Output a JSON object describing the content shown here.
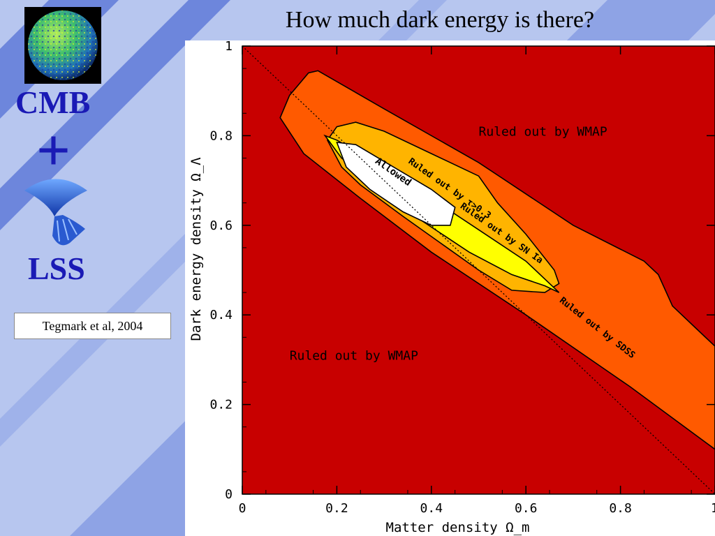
{
  "slide": {
    "title": "How much dark energy is there?",
    "cmb_label": "CMB",
    "plus_label": "+",
    "lss_label": "LSS",
    "citation": "Tegmark et al, 2004"
  },
  "colors": {
    "slide_background": "#b7c6ef",
    "slide_stripes": "#6d86dc",
    "side_text": "#1a1ab5",
    "ruled_out_wmap": "#c80000",
    "ruled_out_sdss": "#ff5a00",
    "ruled_out_tau": "#ffb400",
    "ruled_out_sn": "#ffff00",
    "allowed": "#ffffff"
  },
  "icons": [
    "cmb-sky-globe-icon",
    "lss-cone-icon"
  ],
  "chart_data": {
    "type": "area",
    "xlabel": "Matter density Ω_m",
    "ylabel": "Dark energy density Ω_Λ",
    "xlim": [
      0,
      1
    ],
    "ylim": [
      0,
      1
    ],
    "xticks": [
      {
        "value": 0,
        "label": "0"
      },
      {
        "value": 0.2,
        "label": "0.2"
      },
      {
        "value": 0.4,
        "label": "0.4"
      },
      {
        "value": 0.6,
        "label": "0.6"
      },
      {
        "value": 0.8,
        "label": "0.8"
      },
      {
        "value": 1,
        "label": "1"
      }
    ],
    "yticks": [
      {
        "value": 0,
        "label": "0"
      },
      {
        "value": 0.2,
        "label": "0.2"
      },
      {
        "value": 0.4,
        "label": "0.4"
      },
      {
        "value": 0.6,
        "label": "0.6"
      },
      {
        "value": 0.8,
        "label": "0.8"
      },
      {
        "value": 1,
        "label": "1"
      }
    ],
    "flat_universe_line": [
      [
        0,
        1
      ],
      [
        1,
        0
      ]
    ],
    "regions": [
      {
        "key": "sdss",
        "color": "#ff5a00",
        "polygon": [
          [
            0.08,
            0.84
          ],
          [
            0.1,
            0.89
          ],
          [
            0.14,
            0.94
          ],
          [
            0.16,
            0.945
          ],
          [
            0.3,
            0.86
          ],
          [
            0.5,
            0.74
          ],
          [
            0.7,
            0.6
          ],
          [
            0.85,
            0.52
          ],
          [
            0.88,
            0.49
          ],
          [
            0.91,
            0.42
          ],
          [
            0.96,
            0.37
          ],
          [
            1,
            0.33
          ],
          [
            1,
            0.1
          ],
          [
            0.82,
            0.24
          ],
          [
            0.6,
            0.4
          ],
          [
            0.4,
            0.54
          ],
          [
            0.25,
            0.66
          ],
          [
            0.13,
            0.76
          ],
          [
            0.08,
            0.84
          ]
        ]
      },
      {
        "key": "tau",
        "color": "#ffb400",
        "polygon": [
          [
            0.18,
            0.79
          ],
          [
            0.2,
            0.82
          ],
          [
            0.24,
            0.83
          ],
          [
            0.3,
            0.81
          ],
          [
            0.4,
            0.76
          ],
          [
            0.5,
            0.71
          ],
          [
            0.54,
            0.65
          ],
          [
            0.6,
            0.58
          ],
          [
            0.66,
            0.5
          ],
          [
            0.67,
            0.47
          ],
          [
            0.64,
            0.45
          ],
          [
            0.57,
            0.455
          ],
          [
            0.5,
            0.5
          ],
          [
            0.42,
            0.56
          ],
          [
            0.34,
            0.62
          ],
          [
            0.25,
            0.69
          ],
          [
            0.21,
            0.73
          ],
          [
            0.18,
            0.79
          ]
        ]
      },
      {
        "key": "sn",
        "color": "#ffff00",
        "polygon": [
          [
            0.175,
            0.8
          ],
          [
            0.2,
            0.79
          ],
          [
            0.3,
            0.73
          ],
          [
            0.4,
            0.66
          ],
          [
            0.5,
            0.59
          ],
          [
            0.6,
            0.52
          ],
          [
            0.67,
            0.45
          ],
          [
            0.64,
            0.465
          ],
          [
            0.57,
            0.49
          ],
          [
            0.48,
            0.54
          ],
          [
            0.38,
            0.61
          ],
          [
            0.28,
            0.69
          ],
          [
            0.21,
            0.75
          ],
          [
            0.175,
            0.8
          ]
        ]
      },
      {
        "key": "allowed",
        "color": "#ffffff",
        "polygon": [
          [
            0.2,
            0.785
          ],
          [
            0.24,
            0.78
          ],
          [
            0.32,
            0.73
          ],
          [
            0.4,
            0.68
          ],
          [
            0.45,
            0.64
          ],
          [
            0.44,
            0.6
          ],
          [
            0.4,
            0.6
          ],
          [
            0.34,
            0.63
          ],
          [
            0.27,
            0.68
          ],
          [
            0.22,
            0.73
          ],
          [
            0.2,
            0.785
          ]
        ]
      }
    ],
    "annotations": [
      {
        "text": "Ruled out by WMAP",
        "x": 0.5,
        "y": 0.8,
        "rotate": 0,
        "size": 18,
        "color": "#000"
      },
      {
        "text": "Ruled out by WMAP",
        "x": 0.1,
        "y": 0.3,
        "rotate": 0,
        "size": 18,
        "color": "#000"
      },
      {
        "text": "Allowed",
        "x": 0.28,
        "y": 0.74,
        "rotate": 35,
        "size": 14,
        "color": "#000",
        "bold": true
      },
      {
        "text": "Ruled out by τ>0.3",
        "x": 0.35,
        "y": 0.74,
        "rotate": 35,
        "size": 13,
        "color": "#000",
        "bold": true
      },
      {
        "text": "Ruled out by SN Ia",
        "x": 0.46,
        "y": 0.64,
        "rotate": 35,
        "size": 13,
        "color": "#000",
        "bold": true
      },
      {
        "text": "Ruled out by SDSS",
        "x": 0.67,
        "y": 0.43,
        "rotate": 38,
        "size": 13,
        "color": "#000",
        "bold": true
      }
    ]
  }
}
